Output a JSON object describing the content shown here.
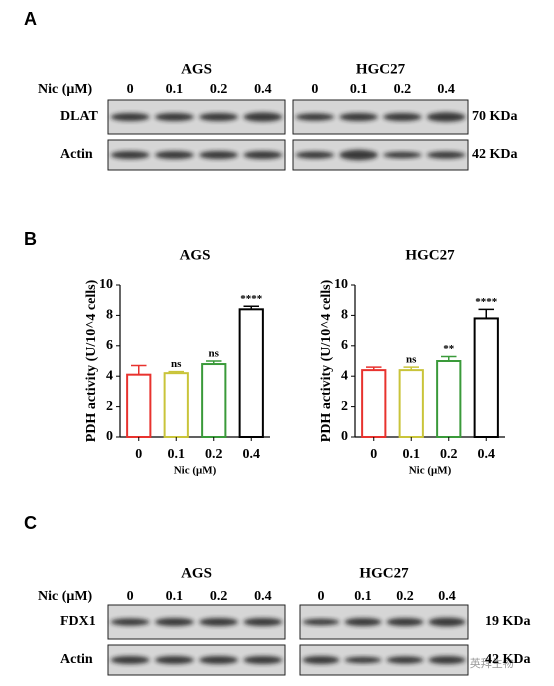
{
  "panel_labels": [
    "A",
    "B",
    "C"
  ],
  "watermark": "公众号 · 英拜生物",
  "blots": [
    {
      "cell_lines": [
        "AGS",
        "HGC27"
      ],
      "treatment_label": "Nic (μM)",
      "doses": [
        "0",
        "0.1",
        "0.2",
        "0.4"
      ],
      "rows": [
        {
          "name": "DLAT",
          "size": "70 KDa"
        },
        {
          "name": "Actin",
          "size": "42 KDa"
        }
      ]
    },
    {
      "cell_lines": [
        "AGS",
        "HGC27"
      ],
      "treatment_label": "Nic (μM)",
      "doses": [
        "0",
        "0.1",
        "0.2",
        "0.4"
      ],
      "rows": [
        {
          "name": "FDX1",
          "size": "19 KDa"
        },
        {
          "name": "Actin",
          "size": "42 KDa"
        }
      ]
    }
  ],
  "chart_data": [
    {
      "type": "bar",
      "title": "AGS",
      "y_label": "PDH activity (U/10^4 cells)",
      "x_label": "Nic (μM)",
      "categories": [
        "0",
        "0.1",
        "0.2",
        "0.4"
      ],
      "values": [
        4.1,
        4.2,
        4.8,
        8.4
      ],
      "errors": [
        0.6,
        0.1,
        0.2,
        0.2
      ],
      "colors": [
        "#e8322e",
        "#c9c43a",
        "#3a9a3a",
        "#000000"
      ],
      "significance": [
        null,
        "ns",
        "ns",
        "****"
      ],
      "ylim": [
        0,
        10
      ],
      "yticks": [
        0,
        2,
        4,
        6,
        8,
        10
      ]
    },
    {
      "type": "bar",
      "title": "HGC27",
      "y_label": "PDH activity (U/10^4 cells)",
      "x_label": "Nic (μM)",
      "categories": [
        "0",
        "0.1",
        "0.2",
        "0.4"
      ],
      "values": [
        4.4,
        4.4,
        5.0,
        7.8
      ],
      "errors": [
        0.2,
        0.2,
        0.3,
        0.6
      ],
      "colors": [
        "#e8322e",
        "#c9c43a",
        "#3a9a3a",
        "#000000"
      ],
      "significance": [
        null,
        "ns",
        "**",
        "****"
      ],
      "ylim": [
        0,
        10
      ],
      "yticks": [
        0,
        2,
        4,
        6,
        8,
        10
      ]
    }
  ]
}
